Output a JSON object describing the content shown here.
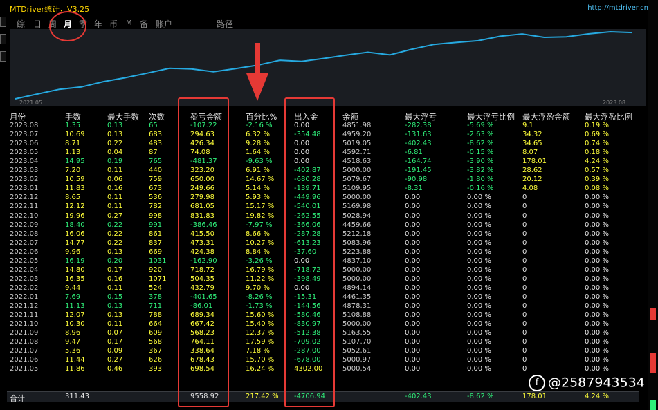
{
  "app": {
    "title": "MTDriver统计，V3.25",
    "url": "http://mtdriver.cn"
  },
  "tabs": [
    "综",
    "日",
    "周",
    "月",
    "季",
    "年",
    "币",
    "M",
    "备",
    "账户",
    "路径"
  ],
  "active_tab": "月",
  "chart": {
    "x_start": "2021.05",
    "x_end": "2023.08",
    "line_color": "#26a9e0"
  },
  "headers": [
    "月份",
    "手数",
    "最大手数",
    "次数",
    "盈亏金额",
    "百分比%",
    "出入金",
    "余额",
    "最大浮亏",
    "最大浮亏比例",
    "最大浮盈金额",
    "最大浮盈比例"
  ],
  "rows": [
    [
      "2023.08",
      "1.35",
      "0.13",
      "65",
      "-107.22",
      "-2.16 %",
      "0.00",
      "4851.98",
      "-282.38",
      "-5.69 %",
      "9.1",
      "0.19 %"
    ],
    [
      "2023.07",
      "10.69",
      "0.13",
      "683",
      "294.63",
      "6.32 %",
      "-354.48",
      "4959.20",
      "-131.63",
      "-2.63 %",
      "34.32",
      "0.69 %"
    ],
    [
      "2023.06",
      "8.71",
      "0.22",
      "483",
      "426.34",
      "9.28 %",
      "0.00",
      "5019.05",
      "-402.43",
      "-8.62 %",
      "34.65",
      "0.74 %"
    ],
    [
      "2023.05",
      "1.13",
      "0.04",
      "87",
      "74.08",
      "1.64 %",
      "0.00",
      "4592.71",
      "-6.81",
      "-0.15 %",
      "8.07",
      "0.18 %"
    ],
    [
      "2023.04",
      "14.95",
      "0.19",
      "765",
      "-481.37",
      "-9.63 %",
      "0.00",
      "4518.63",
      "-164.74",
      "-3.90 %",
      "178.01",
      "4.24 %"
    ],
    [
      "2023.03",
      "7.20",
      "0.11",
      "440",
      "323.20",
      "6.91 %",
      "-402.87",
      "5000.00",
      "-191.45",
      "-3.82 %",
      "28.62",
      "0.57 %"
    ],
    [
      "2023.02",
      "10.59",
      "0.06",
      "759",
      "650.00",
      "14.67 %",
      "-680.28",
      "5079.67",
      "-90.98",
      "-1.80 %",
      "20.12",
      "0.39 %"
    ],
    [
      "2023.01",
      "11.83",
      "0.16",
      "673",
      "249.66",
      "5.14 %",
      "-139.71",
      "5109.95",
      "-8.31",
      "-0.16 %",
      "4.08",
      "0.08 %"
    ],
    [
      "2022.12",
      "8.65",
      "0.11",
      "536",
      "279.98",
      "5.93 %",
      "-449.96",
      "5000.00",
      "0.00",
      "0.00 %",
      "0",
      "0.00 %"
    ],
    [
      "2022.11",
      "12.12",
      "0.11",
      "782",
      "681.05",
      "15.17 %",
      "-540.01",
      "5169.98",
      "0.00",
      "0.00 %",
      "0",
      "0.00 %"
    ],
    [
      "2022.10",
      "19.96",
      "0.27",
      "998",
      "831.83",
      "19.82 %",
      "-262.55",
      "5028.94",
      "0.00",
      "0.00 %",
      "0",
      "0.00 %"
    ],
    [
      "2022.09",
      "18.40",
      "0.22",
      "991",
      "-386.46",
      "-7.97 %",
      "-366.06",
      "4459.66",
      "0.00",
      "0.00 %",
      "0",
      "0.00 %"
    ],
    [
      "2022.08",
      "16.06",
      "0.22",
      "861",
      "415.50",
      "8.66 %",
      "-287.28",
      "5212.18",
      "0.00",
      "0.00 %",
      "0",
      "0.00 %"
    ],
    [
      "2022.07",
      "14.77",
      "0.22",
      "837",
      "473.31",
      "10.27 %",
      "-613.23",
      "5083.96",
      "0.00",
      "0.00 %",
      "0",
      "0.00 %"
    ],
    [
      "2022.06",
      "9.96",
      "0.13",
      "669",
      "424.38",
      "8.84 %",
      "-37.60",
      "5223.88",
      "0.00",
      "0.00 %",
      "0",
      "0.00 %"
    ],
    [
      "2022.05",
      "16.19",
      "0.20",
      "1031",
      "-162.90",
      "-3.26 %",
      "0.00",
      "4837.10",
      "0.00",
      "0.00 %",
      "0",
      "0.00 %"
    ],
    [
      "2022.04",
      "14.80",
      "0.17",
      "920",
      "718.72",
      "16.79 %",
      "-718.72",
      "5000.00",
      "0.00",
      "0.00 %",
      "0",
      "0.00 %"
    ],
    [
      "2022.03",
      "16.35",
      "0.16",
      "1071",
      "504.35",
      "11.22 %",
      "-398.49",
      "5000.00",
      "0.00",
      "0.00 %",
      "0",
      "0.00 %"
    ],
    [
      "2022.02",
      "9.44",
      "0.11",
      "524",
      "432.79",
      "9.70 %",
      "0.00",
      "4894.14",
      "0.00",
      "0.00 %",
      "0",
      "0.00 %"
    ],
    [
      "2022.01",
      "7.69",
      "0.15",
      "378",
      "-401.65",
      "-8.26 %",
      "-15.31",
      "4461.35",
      "0.00",
      "0.00 %",
      "0",
      "0.00 %"
    ],
    [
      "2021.12",
      "11.13",
      "0.13",
      "711",
      "-86.01",
      "-1.73 %",
      "-144.56",
      "4878.31",
      "0.00",
      "0.00 %",
      "0",
      "0.00 %"
    ],
    [
      "2021.11",
      "12.07",
      "0.13",
      "788",
      "689.34",
      "15.60 %",
      "-580.46",
      "5108.88",
      "0.00",
      "0.00 %",
      "0",
      "0.00 %"
    ],
    [
      "2021.10",
      "10.30",
      "0.11",
      "664",
      "667.42",
      "15.40 %",
      "-830.97",
      "5000.00",
      "0.00",
      "0.00 %",
      "0",
      "0.00 %"
    ],
    [
      "2021.09",
      "8.96",
      "0.07",
      "609",
      "568.23",
      "12.37 %",
      "-512.38",
      "5163.55",
      "0.00",
      "0.00 %",
      "0",
      "0.00 %"
    ],
    [
      "2021.08",
      "9.47",
      "0.17",
      "568",
      "764.11",
      "17.59 %",
      "-709.02",
      "5107.70",
      "0.00",
      "0.00 %",
      "0",
      "0.00 %"
    ],
    [
      "2021.07",
      "5.36",
      "0.09",
      "367",
      "338.64",
      "7.18 %",
      "-287.00",
      "5052.61",
      "0.00",
      "0.00 %",
      "0",
      "0.00 %"
    ],
    [
      "2021.06",
      "11.44",
      "0.27",
      "626",
      "678.43",
      "15.70 %",
      "-678.00",
      "5000.97",
      "0.00",
      "0.00 %",
      "0",
      "0.00 %"
    ],
    [
      "2021.05",
      "11.86",
      "0.46",
      "393",
      "698.54",
      "16.24 %",
      "4302.00",
      "5000.54",
      "0.00",
      "0.00 %",
      "0",
      "0.00 %"
    ]
  ],
  "total": {
    "label": "合计",
    "lots": "311.43",
    "profit": "9558.92",
    "percent": "217.42 %",
    "inout": "-4706.94",
    "max_float_loss": "-402.43",
    "max_float_loss_pct": "-8.62 %",
    "max_float_profit": "178.01",
    "max_float_profit_pct": "4.24 %"
  },
  "watermark": "@2587943534",
  "watermark_icon": "f",
  "colors": {
    "title": "#ffd700",
    "url": "#4fc3f7",
    "yellow": "#ffff3a",
    "green": "#2ff07a",
    "cyan": "#2fe0d8",
    "annotation_red": "#e53935"
  }
}
